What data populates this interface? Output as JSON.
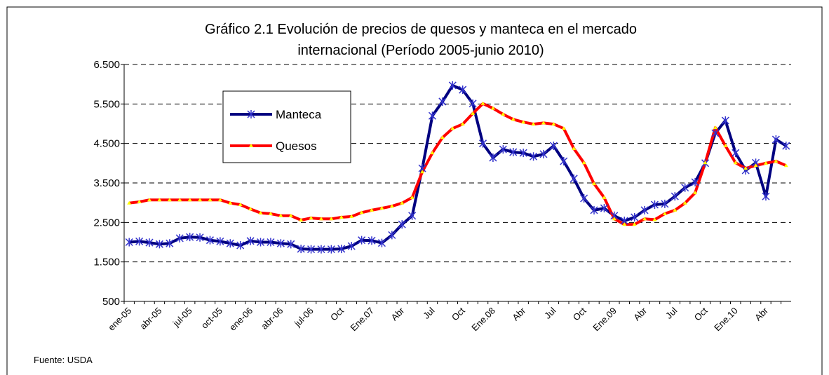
{
  "chart_data": {
    "type": "line",
    "title": "Gráfico 2.1  Evolución de precios de quesos y manteca en el mercado",
    "subtitle": "internacional (Período 2005-junio 2010)",
    "source": "Fuente: USDA",
    "categories": [
      "ene-05",
      null,
      null,
      "abr-05",
      null,
      null,
      "jul-05",
      null,
      null,
      "oct-05",
      null,
      null,
      "ene-06",
      null,
      null,
      "abr-06",
      null,
      null,
      "jul-06",
      null,
      null,
      "Oct",
      null,
      null,
      "Ene.07",
      null,
      null,
      "Abr",
      null,
      null,
      "Jul",
      null,
      null,
      "Oct",
      null,
      null,
      "Ene.08",
      null,
      null,
      "Abr",
      null,
      null,
      "Jul",
      null,
      null,
      "Oct",
      null,
      null,
      "Ene.09",
      null,
      null,
      "Abr",
      null,
      null,
      "Jul",
      null,
      null,
      "Oct",
      null,
      null,
      "Ene.10",
      null,
      null,
      "Abr",
      null,
      null
    ],
    "ylim": [
      500,
      6500
    ],
    "yticks": [
      {
        "value": 500,
        "label": "500"
      },
      {
        "value": 1500,
        "label": "1.500"
      },
      {
        "value": 2500,
        "label": "2.500"
      },
      {
        "value": 3500,
        "label": "3.500"
      },
      {
        "value": 4500,
        "label": "4.500"
      },
      {
        "value": 5500,
        "label": "5.500"
      },
      {
        "value": 6500,
        "label": "6.500"
      }
    ],
    "grid": true,
    "series": [
      {
        "name": "Manteca",
        "color": "#000080",
        "marker_color": "#3333cc",
        "values": [
          2000,
          2020,
          1990,
          1950,
          1970,
          2100,
          2130,
          2120,
          2050,
          2020,
          1970,
          1920,
          2030,
          2000,
          2000,
          1970,
          1950,
          1830,
          1820,
          1820,
          1820,
          1830,
          1900,
          2050,
          2040,
          1980,
          2180,
          2450,
          2670,
          3870,
          5200,
          5560,
          5970,
          5860,
          5510,
          4500,
          4140,
          4350,
          4280,
          4260,
          4170,
          4230,
          4440,
          4050,
          3610,
          3110,
          2810,
          2860,
          2670,
          2540,
          2630,
          2810,
          2950,
          2970,
          3160,
          3380,
          3520,
          4000,
          4760,
          5080,
          4260,
          3820,
          4010,
          3160,
          4600,
          4440
        ]
      },
      {
        "name": "Quesos",
        "color": "#ff0000",
        "marker_color": "#ffff00",
        "values": [
          2990,
          3020,
          3070,
          3070,
          3070,
          3070,
          3070,
          3070,
          3070,
          3070,
          2990,
          2950,
          2840,
          2740,
          2720,
          2670,
          2670,
          2560,
          2610,
          2590,
          2590,
          2630,
          2650,
          2750,
          2810,
          2860,
          2910,
          2990,
          3130,
          3780,
          4260,
          4650,
          4880,
          4990,
          5260,
          5510,
          5390,
          5240,
          5110,
          5040,
          4990,
          5020,
          4990,
          4880,
          4370,
          4010,
          3480,
          3130,
          2590,
          2450,
          2450,
          2590,
          2570,
          2720,
          2810,
          2990,
          3250,
          4010,
          4900,
          4440,
          4010,
          3870,
          3940,
          4000,
          4050,
          3940
        ]
      }
    ]
  }
}
